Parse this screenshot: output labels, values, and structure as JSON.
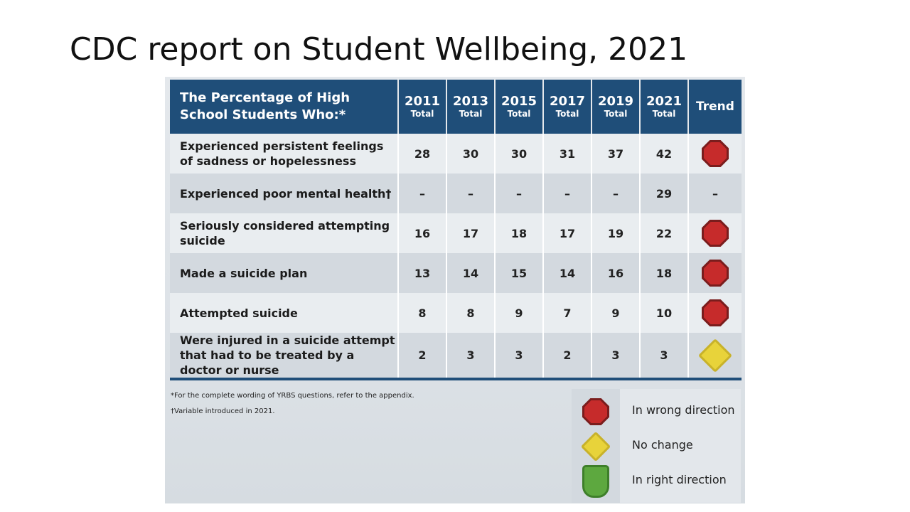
{
  "slide": {
    "title": "CDC report on Student Wellbeing, 2021"
  },
  "table": {
    "question_header": "The Percentage of High School Students Who:*",
    "years": [
      {
        "year": "2011",
        "sub": "Total"
      },
      {
        "year": "2013",
        "sub": "Total"
      },
      {
        "year": "2015",
        "sub": "Total"
      },
      {
        "year": "2017",
        "sub": "Total"
      },
      {
        "year": "2019",
        "sub": "Total"
      },
      {
        "year": "2021",
        "sub": "Total"
      }
    ],
    "trend_header": "Trend",
    "rows": [
      {
        "question": "Experienced persistent feelings of sadness or hopelessness",
        "values": [
          "28",
          "30",
          "30",
          "31",
          "37",
          "42"
        ],
        "trend": "wrong-direction"
      },
      {
        "question": "Experienced poor mental health†",
        "values": [
          "–",
          "–",
          "–",
          "–",
          "–",
          "29"
        ],
        "trend": "–"
      },
      {
        "question": "Seriously considered attempting suicide",
        "values": [
          "16",
          "17",
          "18",
          "17",
          "19",
          "22"
        ],
        "trend": "wrong-direction"
      },
      {
        "question": "Made a suicide plan",
        "values": [
          "13",
          "14",
          "15",
          "14",
          "16",
          "18"
        ],
        "trend": "wrong-direction"
      },
      {
        "question": "Attempted suicide",
        "values": [
          "8",
          "8",
          "9",
          "7",
          "9",
          "10"
        ],
        "trend": "wrong-direction"
      },
      {
        "question": "Were injured in a suicide attempt that had to be treated by a doctor or nurse",
        "values": [
          "2",
          "3",
          "3",
          "2",
          "3",
          "3"
        ],
        "trend": "no-change"
      }
    ]
  },
  "footnotes": {
    "note1": "*For the complete wording of YRBS questions, refer to the appendix.",
    "note2": "†Variable introduced in 2021."
  },
  "legend": {
    "wrong": "In wrong direction",
    "nochange": "No change",
    "right": "In right direction"
  },
  "colors": {
    "header_bg": "#1f4e79",
    "wrong_red": "#c62b2b",
    "nochange_yellow": "#e8d33a",
    "right_green": "#5da83f"
  }
}
